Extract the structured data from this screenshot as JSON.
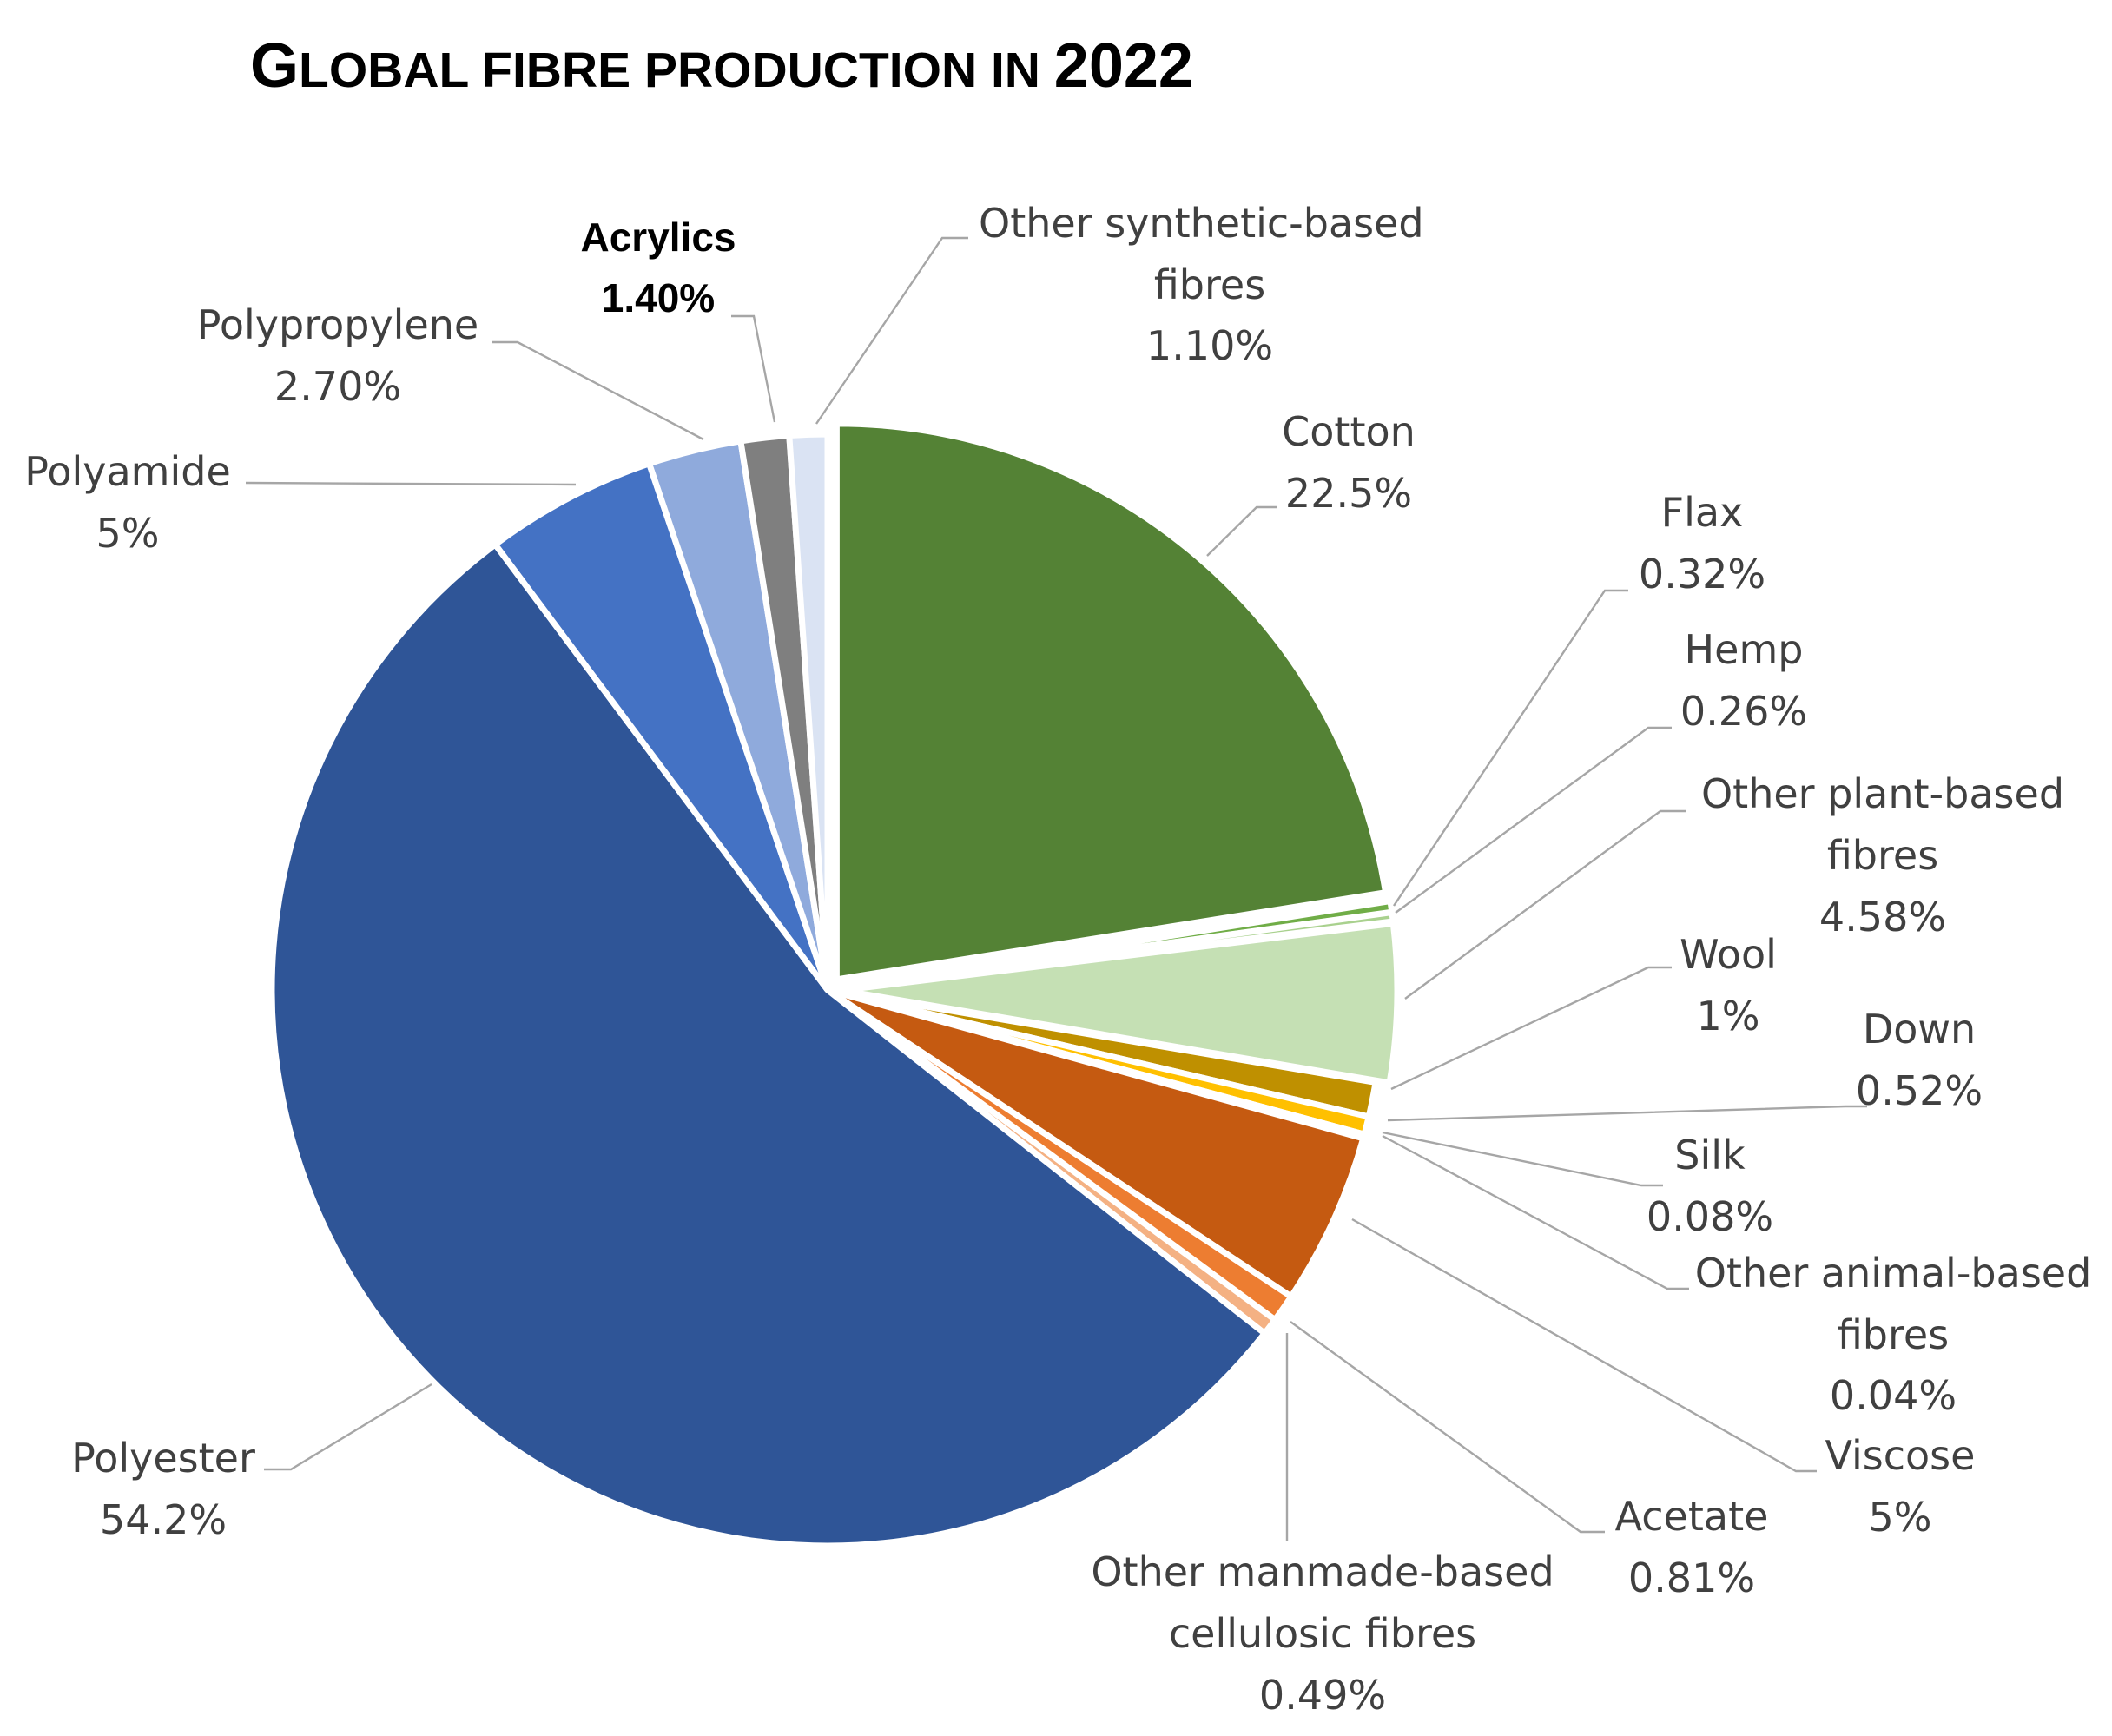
{
  "chart_data": {
    "type": "pie",
    "title": {
      "prefix": "G",
      "rest": "LOBAL FIBRE PRODUCTION IN ",
      "year": "2022"
    },
    "unit": "%",
    "slices": [
      {
        "label": "Cotton",
        "value_text": "22.5%",
        "value": 22.5,
        "color": "#548235"
      },
      {
        "label": "Flax",
        "value_text": "0.32%",
        "value": 0.32,
        "color": "#70ad47"
      },
      {
        "label": "Hemp",
        "value_text": "0.26%",
        "value": 0.26,
        "color": "#a9d18e"
      },
      {
        "label": "Other plant-based fibres",
        "value_text": "4.58%",
        "value": 4.58,
        "color": "#c5e0b4"
      },
      {
        "label": "Wool",
        "value_text": "1%",
        "value": 1.0,
        "color": "#bf9000"
      },
      {
        "label": "Down",
        "value_text": "0.52%",
        "value": 0.52,
        "color": "#ffc000"
      },
      {
        "label": "Silk",
        "value_text": "0.08%",
        "value": 0.08,
        "color": "#ffd966"
      },
      {
        "label": "Other animal-based fibres",
        "value_text": "0.04%",
        "value": 0.04,
        "color": "#ffe699"
      },
      {
        "label": "Viscose",
        "value_text": "5%",
        "value": 5.0,
        "color": "#c55a11"
      },
      {
        "label": "Acetate",
        "value_text": "0.81%",
        "value": 0.81,
        "color": "#ed7d31"
      },
      {
        "label": "Other manmade-based cellulosic fibres",
        "value_text": "0.49%",
        "value": 0.49,
        "color": "#f4b183"
      },
      {
        "label": "Polyester",
        "value_text": "54.2%",
        "value": 54.2,
        "color": "#2f5597"
      },
      {
        "label": "Polyamide",
        "value_text": "5%",
        "value": 5.0,
        "color": "#4472c4"
      },
      {
        "label": "Polypropylene",
        "value_text": "2.70%",
        "value": 2.7,
        "color": "#8faadc"
      },
      {
        "label": "Acrylics",
        "value_text": "1.40%",
        "value": 1.4,
        "color": "#7f7f7f"
      },
      {
        "label": "Other synthetic-based fibres",
        "value_text": "1.10%",
        "value": 1.1,
        "color": "#dae3f3"
      }
    ]
  }
}
